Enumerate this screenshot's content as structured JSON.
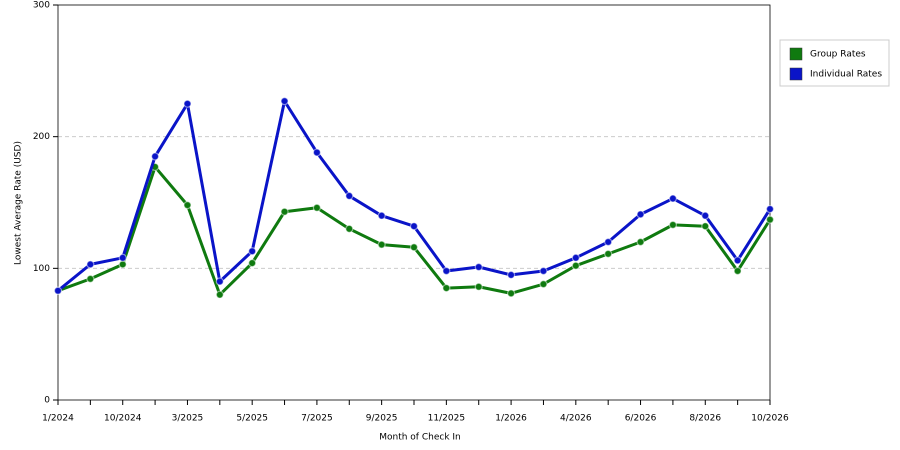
{
  "chart_data": {
    "type": "line",
    "x_label": "Month of Check In",
    "y_label": "Lowest Average Rate (USD)",
    "categories": [
      "1/2024",
      null,
      "10/2024",
      null,
      "3/2025",
      null,
      "5/2025",
      null,
      "7/2025",
      null,
      "9/2025",
      null,
      "11/2025",
      null,
      "1/2026",
      null,
      "4/2026",
      null,
      "6/2026",
      null,
      "8/2026",
      null,
      "10/2026"
    ],
    "series": [
      {
        "name": "Group Rates",
        "color": "#0f7a0f",
        "values": [
          83,
          92,
          103,
          177,
          148,
          80,
          104,
          143,
          146,
          130,
          118,
          116,
          85,
          86,
          81,
          88,
          102,
          111,
          120,
          133,
          132,
          98,
          137
        ]
      },
      {
        "name": "Individual Rates",
        "color": "#0a14c8",
        "values": [
          83,
          103,
          108,
          185,
          225,
          90,
          113,
          227,
          188,
          155,
          140,
          132,
          98,
          101,
          95,
          98,
          108,
          120,
          141,
          153,
          140,
          106,
          145
        ]
      }
    ],
    "ylim": [
      0,
      300
    ],
    "yticks": [
      0,
      100,
      200,
      300
    ],
    "grid": true,
    "legend": "right"
  }
}
